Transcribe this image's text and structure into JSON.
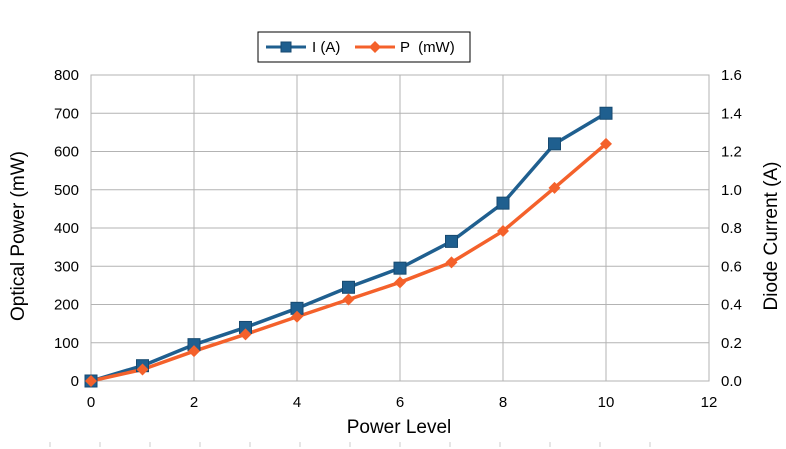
{
  "chart_data": {
    "type": "line",
    "x": [
      0,
      1,
      2,
      3,
      4,
      5,
      6,
      7,
      8,
      9,
      10
    ],
    "xlabel": "Power Level",
    "xlim": [
      0,
      12
    ],
    "xticks": [
      "0",
      "2",
      "4",
      "6",
      "8",
      "10",
      "12"
    ],
    "ylabel_left": "Optical Power (mW)",
    "ylim_left": [
      0,
      800
    ],
    "yticks_left": [
      "0",
      "100",
      "200",
      "300",
      "400",
      "500",
      "600",
      "700",
      "800"
    ],
    "ylabel_right": "Diode Current (A)",
    "ylim_right": [
      0,
      1.6
    ],
    "yticks_right": [
      "0.0",
      "0.2",
      "0.4",
      "0.6",
      "0.8",
      "1.0",
      "1.2",
      "1.4",
      "1.6"
    ],
    "grid": true,
    "legend_position": "top-center",
    "series": [
      {
        "name": "I (A)",
        "axis": "right",
        "marker": "square",
        "color": "#1f5f8f",
        "values": [
          0.0,
          0.08,
          0.19,
          0.28,
          0.38,
          0.49,
          0.59,
          0.73,
          0.93,
          1.24,
          1.4
        ]
      },
      {
        "name": "P  (mW)",
        "axis": "left",
        "marker": "diamond",
        "color": "#f4612b",
        "values": [
          0,
          30,
          78,
          122,
          168,
          213,
          258,
          310,
          392,
          505,
          620
        ]
      }
    ]
  }
}
